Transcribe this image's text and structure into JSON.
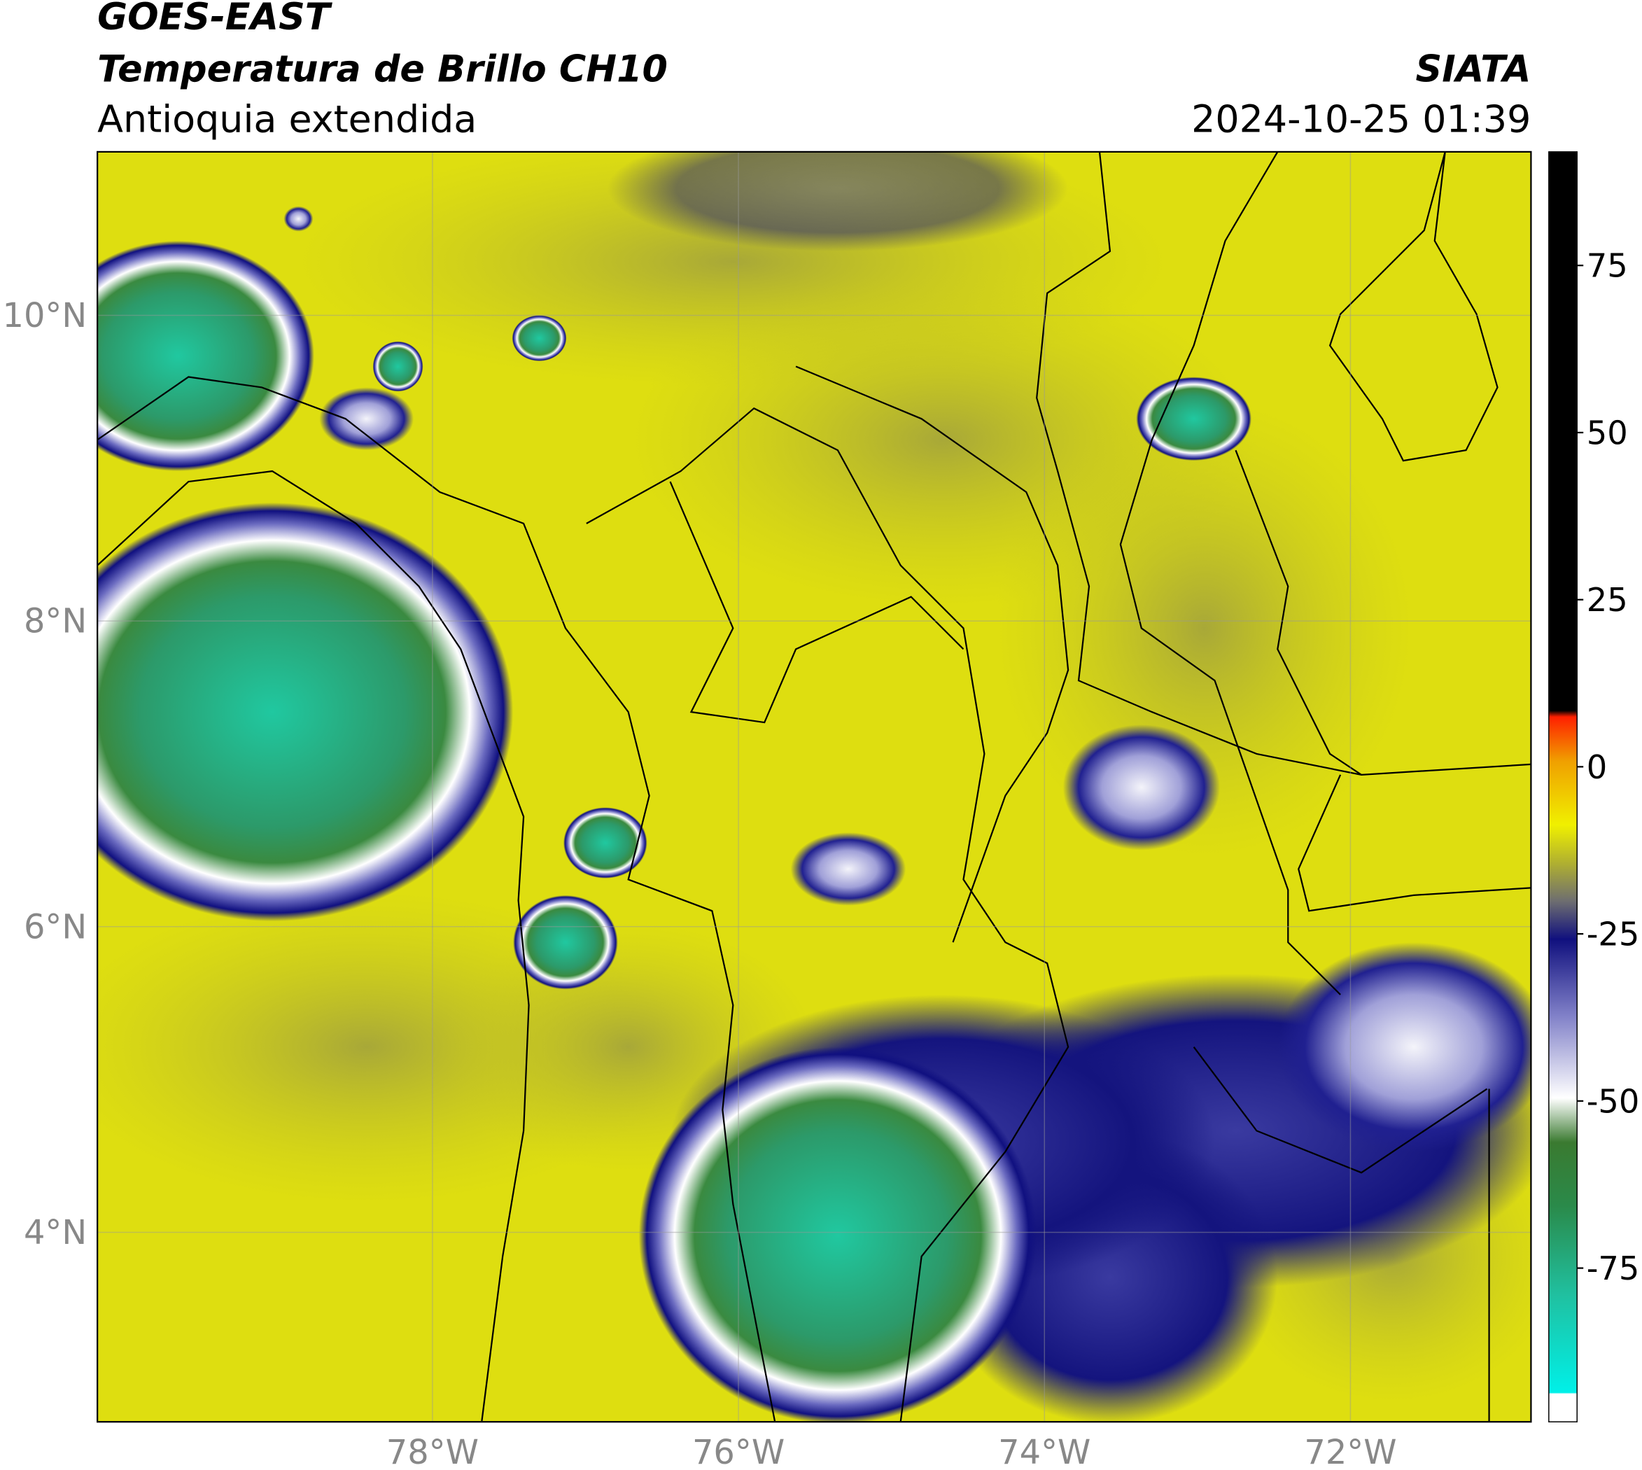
{
  "header": {
    "title": "GOES-EAST",
    "subtitle": "Temperatura de Brillo CH10",
    "region": "Antioquia extendida",
    "agency": "SIATA",
    "datetime": "2024-10-25 01:39"
  },
  "map": {
    "xlim": [
      -80.19,
      -70.82
    ],
    "ylim": [
      2.76,
      11.07
    ],
    "xticks": [
      {
        "value": -78,
        "label": "78°W"
      },
      {
        "value": -76,
        "label": "76°W"
      },
      {
        "value": -74,
        "label": "74°W"
      },
      {
        "value": -72,
        "label": "72°W"
      }
    ],
    "yticks": [
      {
        "value": 10,
        "label": "10°N"
      },
      {
        "value": 8,
        "label": "8°N"
      },
      {
        "value": 6,
        "label": "6°N"
      },
      {
        "value": 4,
        "label": "4°N"
      }
    ],
    "grid": true
  },
  "colorbar": {
    "lim": [
      -98,
      92
    ],
    "ticks": [
      -75,
      -50,
      -25,
      0,
      25,
      50,
      75
    ]
  }
}
